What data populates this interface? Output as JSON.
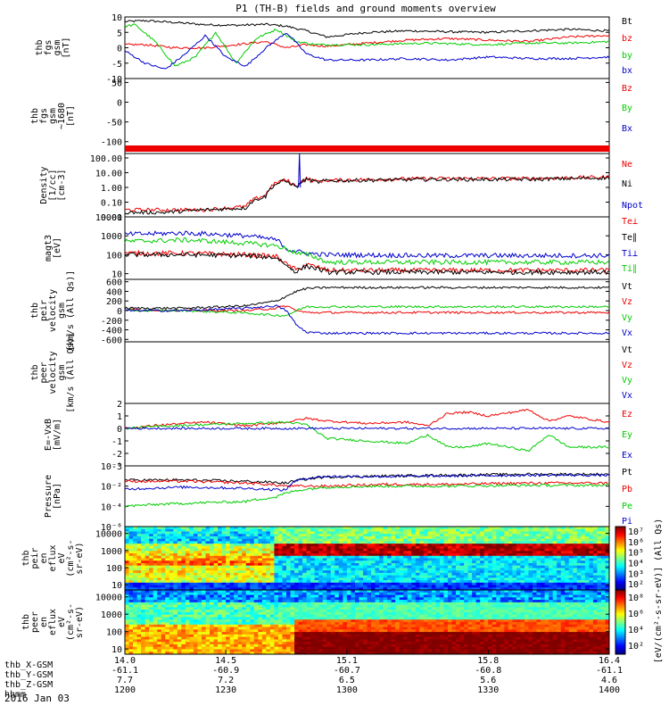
{
  "title": "P1 (TH-B) fields and ground moments overview",
  "date_label": "2016 Jan 03",
  "colors": {
    "black": "#000000",
    "red": "#ee0000",
    "green": "#00cc00",
    "blue": "#0000cc"
  },
  "chart_data": [
    {
      "type": "line",
      "id": "fgs",
      "ylabel_lines": [
        "thb",
        "fgs",
        "gsm",
        "[nT]"
      ],
      "yticks": [
        "10",
        "5",
        "0",
        "-5",
        "-10"
      ],
      "ylim": [
        -10,
        10
      ],
      "legend": [
        "Bt",
        "bz",
        "by",
        "bx"
      ],
      "series": [
        {
          "name": "Bt",
          "color": "black",
          "x": [
            14.0,
            14.1,
            14.25,
            14.4,
            14.55,
            14.7,
            14.8,
            14.9,
            15.0,
            15.2,
            15.4,
            15.6,
            15.8,
            16.0,
            16.2,
            16.4
          ],
          "y": [
            8.5,
            8.8,
            8.2,
            7.5,
            7.3,
            7.6,
            7.0,
            5.5,
            3.5,
            5.0,
            5.5,
            5.2,
            5.0,
            5.5,
            6.0,
            5.5
          ]
        },
        {
          "name": "bz",
          "color": "red",
          "x": [
            14.0,
            14.1,
            14.25,
            14.4,
            14.55,
            14.7,
            14.8,
            14.9,
            15.0,
            15.2,
            15.4,
            15.6,
            15.8,
            16.0,
            16.2,
            16.4
          ],
          "y": [
            1,
            1,
            0,
            0,
            1,
            2,
            0,
            1,
            0.5,
            1.5,
            2.5,
            3,
            2.5,
            2,
            3.5,
            4
          ]
        },
        {
          "name": "by",
          "color": "green",
          "x": [
            14.0,
            14.05,
            14.15,
            14.25,
            14.35,
            14.45,
            14.55,
            14.65,
            14.75,
            14.85,
            14.95,
            15.2,
            15.5,
            15.8,
            16.0,
            16.2,
            16.4
          ],
          "y": [
            7,
            7.5,
            2,
            -6,
            -3,
            5,
            -5,
            3,
            6,
            2,
            1,
            1,
            1.5,
            1,
            1.5,
            1.5,
            2
          ]
        },
        {
          "name": "bx",
          "color": "blue",
          "x": [
            14.0,
            14.1,
            14.2,
            14.3,
            14.4,
            14.5,
            14.6,
            14.7,
            14.8,
            14.9,
            15.0,
            15.2,
            15.4,
            15.6,
            15.8,
            16.0,
            16.2,
            16.4
          ],
          "y": [
            -1,
            -5,
            -7,
            -2,
            4,
            -3,
            -6,
            0,
            5,
            -2,
            -4,
            -4,
            -3.5,
            -4,
            -3,
            -3.5,
            -3.5,
            -3
          ]
        }
      ]
    },
    {
      "type": "line",
      "id": "fgs_tilde",
      "ylabel_lines": [
        "thb",
        "fgs",
        "gsm",
        "~1680",
        "[nT]"
      ],
      "yticks": [
        "50",
        "0",
        "-50",
        "-100"
      ],
      "ylim": [
        -130,
        60
      ],
      "legend": [
        "Bz",
        "By",
        "Bx"
      ],
      "series": [
        {
          "name": "Bz",
          "color": "red",
          "x": [
            14.0,
            16.4
          ],
          "y": [
            -120,
            -120
          ]
        },
        {
          "name": "By",
          "color": "green",
          "x": [
            14.0,
            16.4
          ],
          "y": [
            -121,
            -121
          ]
        },
        {
          "name": "Bx",
          "color": "blue",
          "x": [
            14.0,
            14.5,
            14.8,
            15.0,
            15.2,
            15.5,
            15.8,
            16.1,
            16.4
          ],
          "y": [
            -121,
            -121,
            -118,
            -120,
            -120,
            -119,
            -119,
            -118,
            -116
          ]
        }
      ]
    },
    {
      "type": "line",
      "id": "density",
      "ylabel_lines": [
        "Density",
        "[1/cc]",
        "[cm-3]"
      ],
      "yticks": [
        "100.00",
        "10.00",
        "1.00",
        "0.10",
        "0.01"
      ],
      "yscale": "log",
      "ylim": [
        0.01,
        200
      ],
      "legend": [
        "Ne",
        "Ni",
        "Npot"
      ],
      "series": [
        {
          "name": "Ne",
          "color": "red",
          "x": [
            14.0,
            14.2,
            14.4,
            14.6,
            14.7,
            14.78,
            14.8,
            14.85,
            14.9,
            14.95,
            15.0,
            15.5,
            16.0,
            16.4
          ],
          "y": [
            0.03,
            0.03,
            0.03,
            0.05,
            0.3,
            3,
            3,
            1,
            4,
            2.5,
            3,
            4,
            4,
            5
          ]
        },
        {
          "name": "Ni",
          "color": "black",
          "x": [
            14.0,
            14.2,
            14.4,
            14.6,
            14.7,
            14.78,
            14.8,
            14.85,
            14.9,
            14.95,
            15.0,
            15.5,
            16.0,
            16.4
          ],
          "y": [
            0.02,
            0.02,
            0.03,
            0.04,
            0.25,
            2.5,
            2.5,
            1,
            3.5,
            2.2,
            2.8,
            3.5,
            3.5,
            4.5
          ]
        },
        {
          "name": "Npot",
          "color": "blue",
          "x": [
            14.86,
            14.865,
            14.87
          ],
          "y": [
            1,
            200,
            1
          ]
        }
      ]
    },
    {
      "type": "line",
      "id": "temperature",
      "ylabel_lines": [
        "magt3",
        "[eV]"
      ],
      "yticks": [
        "10000",
        "1000",
        "100",
        "10"
      ],
      "yscale": "log",
      "ylim": [
        5,
        10000
      ],
      "legend": [
        "Te⊥",
        "Te∥",
        "Ti⊥",
        "Ti∥"
      ],
      "series": [
        {
          "name": "Te⊥",
          "color": "red",
          "x": [
            14.0,
            14.3,
            14.6,
            14.75,
            14.8,
            14.85,
            14.9,
            15.0,
            15.5,
            16.0,
            16.4
          ],
          "y": [
            120,
            120,
            100,
            80,
            30,
            15,
            30,
            15,
            15,
            15,
            15
          ]
        },
        {
          "name": "Te∥",
          "color": "black",
          "x": [
            14.0,
            14.3,
            14.6,
            14.75,
            14.8,
            14.85,
            14.9,
            15.0,
            15.5,
            16.0,
            16.4
          ],
          "y": [
            100,
            100,
            90,
            70,
            25,
            12,
            25,
            12,
            12,
            12,
            12
          ]
        },
        {
          "name": "Ti⊥",
          "color": "blue",
          "x": [
            14.0,
            14.3,
            14.6,
            14.75,
            14.8,
            14.85,
            14.9,
            15.0,
            15.5,
            16.0,
            16.4
          ],
          "y": [
            1200,
            1400,
            1000,
            600,
            200,
            150,
            120,
            100,
            90,
            90,
            90
          ]
        },
        {
          "name": "Ti∥",
          "color": "green",
          "x": [
            14.0,
            14.3,
            14.6,
            14.75,
            14.8,
            14.85,
            14.9,
            15.0,
            15.5,
            16.0,
            16.4
          ],
          "y": [
            500,
            600,
            400,
            300,
            200,
            120,
            100,
            40,
            40,
            40,
            40
          ]
        }
      ]
    },
    {
      "type": "line",
      "id": "peir_velocity",
      "ylabel_lines": [
        "thb",
        "peir",
        "velocity",
        "gsm",
        "[km/s (All Qs)]"
      ],
      "yticks": [
        "600",
        "400",
        "200",
        "0",
        "-200",
        "-400",
        "-600"
      ],
      "ylim": [
        -650,
        650
      ],
      "legend": [
        "Vt",
        "Vz",
        "Vy",
        "Vx"
      ],
      "series": [
        {
          "name": "Vt",
          "color": "black",
          "x": [
            14.0,
            14.3,
            14.6,
            14.75,
            14.8,
            14.85,
            14.9,
            15.0,
            15.5,
            16.0,
            16.4
          ],
          "y": [
            50,
            50,
            100,
            200,
            300,
            400,
            460,
            480,
            480,
            480,
            480
          ]
        },
        {
          "name": "Vz",
          "color": "red",
          "x": [
            14.0,
            14.3,
            14.6,
            14.75,
            14.8,
            14.85,
            14.9,
            15.0,
            15.5,
            16.0,
            16.4
          ],
          "y": [
            20,
            0,
            0,
            50,
            100,
            0,
            -40,
            -40,
            -40,
            -40,
            -40
          ]
        },
        {
          "name": "Vy",
          "color": "green",
          "x": [
            14.0,
            14.3,
            14.6,
            14.75,
            14.8,
            14.85,
            14.9,
            15.0,
            15.5,
            16.0,
            16.4
          ],
          "y": [
            0,
            0,
            -50,
            -100,
            -100,
            0,
            80,
            80,
            80,
            80,
            80
          ]
        },
        {
          "name": "Vx",
          "color": "blue",
          "x": [
            14.0,
            14.3,
            14.6,
            14.75,
            14.8,
            14.85,
            14.9,
            15.0,
            15.5,
            16.0,
            16.4
          ],
          "y": [
            0,
            0,
            50,
            100,
            0,
            -300,
            -450,
            -470,
            -470,
            -470,
            -470
          ]
        }
      ]
    },
    {
      "type": "line",
      "id": "peer_velocity",
      "ylabel_lines": [
        "thb",
        "peer",
        "velocity",
        "gsm",
        "[km/s (All Qs)]"
      ],
      "yticks": [],
      "ylim": [
        -650,
        650
      ],
      "legend": [
        "Vt",
        "Vz",
        "Vy",
        "Vx"
      ],
      "series": []
    },
    {
      "type": "line",
      "id": "efield",
      "ylabel_lines": [
        "E=-VxB",
        "[mV/m]"
      ],
      "yticks": [
        "2",
        "1",
        "0",
        "-1",
        "-2",
        "-3"
      ],
      "ylim": [
        -3,
        2
      ],
      "legend": [
        "Ez",
        "Ey",
        "Ex"
      ],
      "series": [
        {
          "name": "Ez",
          "color": "red",
          "x": [
            14.0,
            14.2,
            14.4,
            14.6,
            14.8,
            14.9,
            15.0,
            15.2,
            15.4,
            15.5,
            15.6,
            15.7,
            15.8,
            16.0,
            16.1,
            16.2,
            16.4
          ],
          "y": [
            0,
            0.3,
            0.5,
            0.2,
            0.5,
            0.8,
            0.6,
            0.4,
            0.5,
            0.2,
            1.2,
            1.3,
            1.0,
            1.5,
            0.6,
            1.0,
            0.5
          ]
        },
        {
          "name": "Ey",
          "color": "green",
          "x": [
            14.0,
            14.2,
            14.4,
            14.6,
            14.8,
            14.9,
            15.0,
            15.2,
            15.4,
            15.5,
            15.6,
            15.7,
            15.8,
            16.0,
            16.1,
            16.2,
            16.4
          ],
          "y": [
            0,
            0.2,
            0.3,
            0.4,
            0.5,
            0.3,
            -0.8,
            -1.0,
            -1.2,
            -0.5,
            -1.5,
            -1.5,
            -1.2,
            -1.8,
            -0.5,
            -1.5,
            -1.5
          ]
        },
        {
          "name": "Ex",
          "color": "blue",
          "x": [
            14.0,
            14.4,
            14.8,
            15.2,
            15.6,
            16.0,
            16.4
          ],
          "y": [
            0,
            0,
            0,
            0,
            0,
            0,
            0
          ]
        }
      ]
    },
    {
      "type": "line",
      "id": "pressure",
      "ylabel_lines": [
        "Pressure",
        "[nPa]"
      ],
      "yticks": [
        "10⁻⁰",
        "10⁻²",
        "10⁻⁴",
        "10⁻⁶"
      ],
      "yscale": "log",
      "ylim": [
        1e-06,
        1
      ],
      "legend": [
        "Pt",
        "Pb",
        "Pe",
        "Pi"
      ],
      "series": [
        {
          "name": "Pt",
          "color": "black",
          "x": [
            14.0,
            14.3,
            14.6,
            14.8,
            14.9,
            15.0,
            15.3,
            15.6,
            16.0,
            16.4
          ],
          "y": [
            0.04,
            0.04,
            0.03,
            0.02,
            0.05,
            0.08,
            0.1,
            0.12,
            0.15,
            0.15
          ]
        },
        {
          "name": "Pb",
          "color": "red",
          "x": [
            14.0,
            14.3,
            14.6,
            14.8,
            14.9,
            15.0,
            15.3,
            15.6,
            16.0,
            16.4
          ],
          "y": [
            0.03,
            0.03,
            0.02,
            0.01,
            0.01,
            0.01,
            0.015,
            0.015,
            0.02,
            0.02
          ]
        },
        {
          "name": "Pe",
          "color": "green",
          "x": [
            14.0,
            14.3,
            14.6,
            14.75,
            14.8,
            14.9,
            15.0,
            15.3,
            15.6,
            16.0,
            16.4
          ],
          "y": [
            0.0001,
            0.0002,
            0.0003,
            0.0008,
            0.002,
            0.005,
            0.008,
            0.01,
            0.01,
            0.012,
            0.012
          ]
        },
        {
          "name": "Pi",
          "color": "blue",
          "x": [
            14.0,
            14.3,
            14.6,
            14.8,
            14.9,
            15.0,
            15.3,
            15.6,
            16.0,
            16.4
          ],
          "y": [
            0.005,
            0.008,
            0.006,
            0.004,
            0.06,
            0.09,
            0.09,
            0.1,
            0.12,
            0.12
          ]
        }
      ]
    },
    {
      "type": "heatmap",
      "id": "peir_en",
      "ylabel_lines": [
        "thb",
        "peir",
        "en",
        "eflux",
        "eV",
        "(cm²-s-",
        "sr-eV)"
      ],
      "yticks": [
        "10000",
        "1000",
        "100",
        "10"
      ],
      "yscale": "log",
      "ylim": [
        5,
        25000
      ]
    },
    {
      "type": "heatmap",
      "id": "peer_en",
      "ylabel_lines": [
        "thb",
        "peer",
        "en",
        "eflux",
        "eV",
        "(cm²-s-",
        "sr-eV)"
      ],
      "yticks": [
        "10000",
        "1000",
        "100",
        "10"
      ],
      "yscale": "log",
      "ylim": [
        5,
        25000
      ]
    }
  ],
  "colorbar1": {
    "ticks": [
      "10⁷",
      "10⁶",
      "10⁵",
      "10⁴",
      "10³",
      "10²"
    ]
  },
  "colorbar2": {
    "ticks": [
      "10⁸",
      "10⁶",
      "10⁴",
      "10²"
    ]
  },
  "colorbar_label": "[eV/(cm²-s-sr-eV)] (All Qs)",
  "xaxis": {
    "row_labels": [
      "thb_X-GSM",
      "thb_Y-GSM",
      "thb_Z-GSM",
      "hhmm"
    ],
    "columns": [
      {
        "top": "14.0",
        "vals": [
          "-61.1",
          "7.7",
          "1200"
        ]
      },
      {
        "top": "14.5",
        "vals": [
          "-60.9",
          "7.2",
          "1230"
        ]
      },
      {
        "top": "15.1",
        "vals": [
          "-60.7",
          "6.5",
          "1300"
        ]
      },
      {
        "top": "15.8",
        "vals": [
          "-60.8",
          "5.6",
          "1330"
        ]
      },
      {
        "top": "16.4",
        "vals": [
          "-61.1",
          "4.6",
          "1400"
        ]
      }
    ]
  }
}
